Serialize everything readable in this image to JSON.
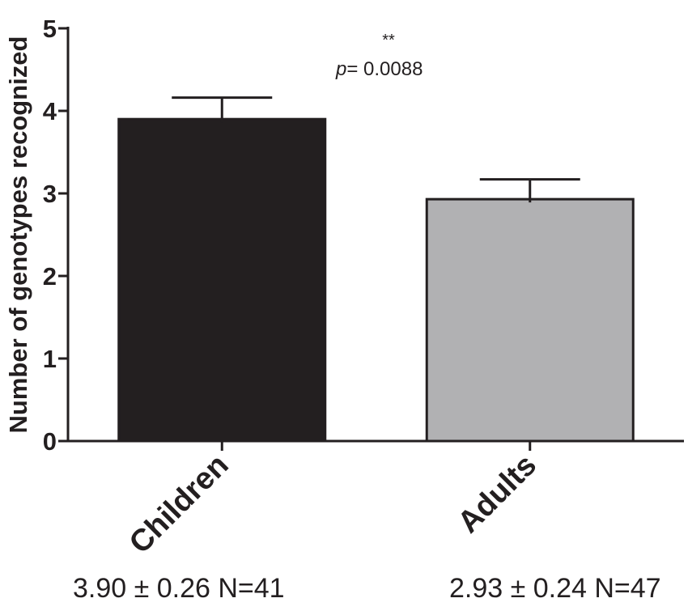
{
  "chart_data": {
    "type": "bar",
    "categories": [
      "Children",
      "Adults"
    ],
    "values": [
      3.9,
      2.93
    ],
    "errors": [
      0.26,
      0.24
    ],
    "bar_colors": [
      "#231f20",
      "#b1b1b3"
    ],
    "ylabel": "Number of genotypes recognized",
    "xlabel": "",
    "ylim": [
      0,
      5
    ],
    "yticks": [
      "0",
      "1",
      "2",
      "3",
      "4",
      "5"
    ],
    "grid": false,
    "annotation": {
      "stars": "**",
      "p_label": "p",
      "p_value": "= 0.0088"
    },
    "summaries": [
      "3.90 ± 0.26 N=41",
      "2.93 ± 0.24 N=47"
    ]
  }
}
